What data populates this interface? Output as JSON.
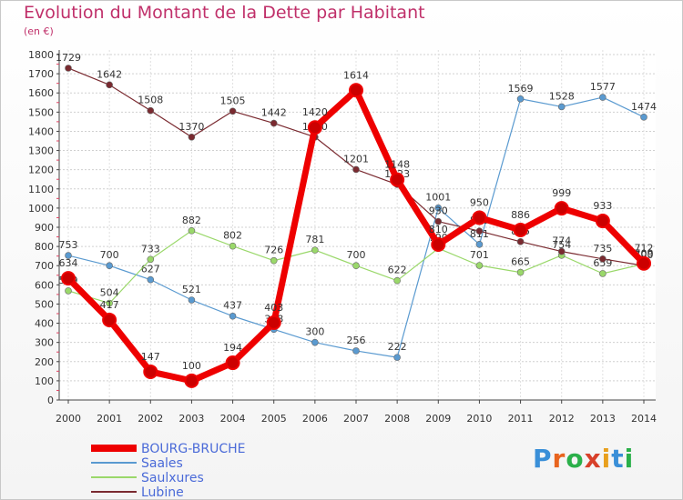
{
  "header": {
    "title": "Evolution du Montant de la Dette par Habitant",
    "subtitle": "(en €)"
  },
  "logo": {
    "text": "Proxiti",
    "colors": [
      "#3a8fd8",
      "#e8641e",
      "#2bb04a",
      "#d8402a",
      "#e8a01e",
      "#3a8fd8",
      "#2bb04a"
    ]
  },
  "chart_data": {
    "type": "line",
    "x": [
      "2000",
      "2001",
      "2002",
      "2003",
      "2004",
      "2005",
      "2006",
      "2007",
      "2008",
      "2009",
      "2010",
      "2011",
      "2012",
      "2013",
      "2014"
    ],
    "ylim": [
      0,
      1800
    ],
    "yticks": [
      0,
      100,
      200,
      300,
      400,
      500,
      600,
      700,
      800,
      900,
      1000,
      1100,
      1200,
      1300,
      1400,
      1500,
      1600,
      1700,
      1800
    ],
    "grid": true,
    "legend_position": "bottom-left",
    "series": [
      {
        "name": "BOURG-BRUCHE",
        "color": "#ee0000",
        "values": [
          634,
          417,
          147,
          100,
          194,
          403,
          1420,
          1614,
          1148,
          810,
          950,
          886,
          999,
          933,
          712
        ]
      },
      {
        "name": "Saales",
        "color": "#5a9ad0",
        "values": [
          753,
          700,
          627,
          521,
          437,
          368,
          300,
          256,
          222,
          1001,
          811,
          1569,
          1528,
          1577,
          1474
        ]
      },
      {
        "name": "Saulxures",
        "color": "#9ad86a",
        "values": [
          569,
          504,
          733,
          882,
          802,
          726,
          781,
          700,
          622,
          790,
          701,
          665,
          754,
          659,
          709
        ]
      },
      {
        "name": "Lubine",
        "color": "#7a2a30",
        "values": [
          1729,
          1642,
          1508,
          1370,
          1505,
          1442,
          1370,
          1201,
          1123,
          930,
          880,
          825,
          774,
          735,
          700
        ]
      }
    ]
  }
}
